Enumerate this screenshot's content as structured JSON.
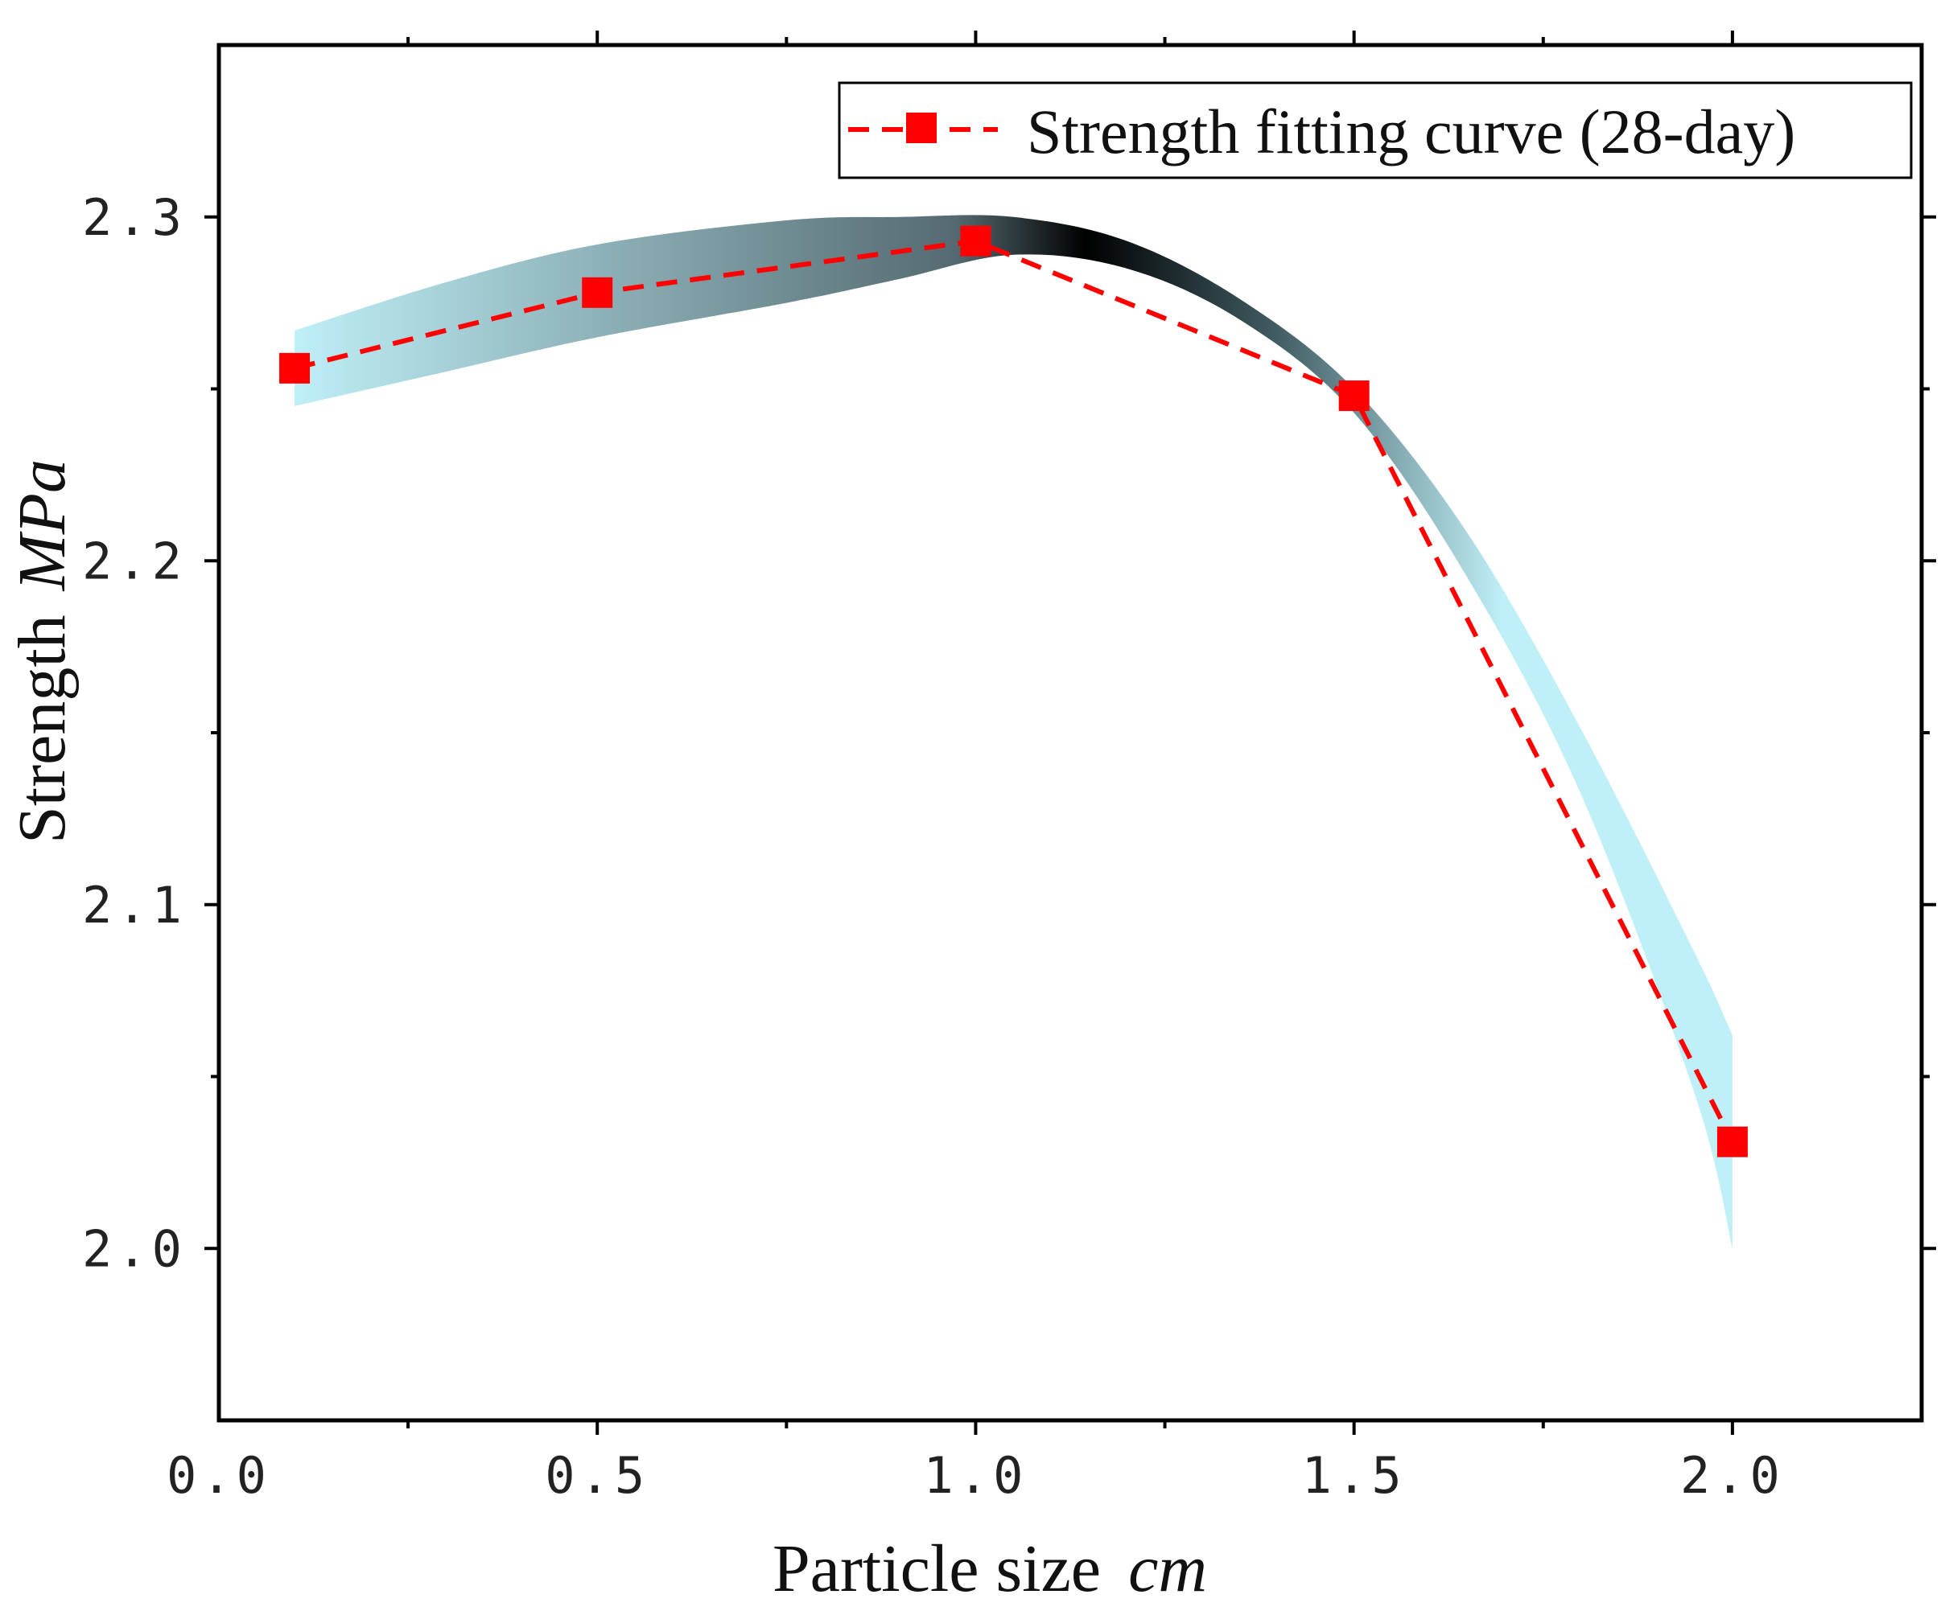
{
  "chart_data": {
    "type": "line",
    "title": "",
    "xlabel": "Particle size",
    "xlabel_unit": "cm",
    "ylabel": "Strength",
    "ylabel_unit": "MPa",
    "xlim": [
      0.0,
      2.25
    ],
    "ylim": [
      1.95,
      2.35
    ],
    "xticks": [
      0.0,
      0.5,
      1.0,
      1.5,
      2.0
    ],
    "xtick_labels": [
      "0.0",
      "0.5",
      "1.0",
      "1.5",
      "2.0"
    ],
    "yticks": [
      2.0,
      2.1,
      2.2,
      2.3
    ],
    "ytick_labels": [
      "2.0",
      "2.1",
      "2.2",
      "2.3"
    ],
    "grid": false,
    "legend_position": "top-right",
    "series": [
      {
        "name": "Strength fitting curve (28-day)",
        "color": "#ff0000",
        "line_style": "dashed",
        "marker": "square",
        "x": [
          0.1,
          0.5,
          1.0,
          1.5,
          2.0
        ],
        "y": [
          2.256,
          2.278,
          2.293,
          2.248,
          2.031
        ]
      }
    ],
    "band": {
      "x": [
        0.1,
        0.3,
        0.5,
        0.75,
        0.9,
        1.05,
        1.2,
        1.35,
        1.5,
        1.65,
        1.8,
        1.95,
        2.0
      ],
      "upper": [
        2.267,
        2.281,
        2.292,
        2.299,
        2.3,
        2.3,
        2.293,
        2.276,
        2.25,
        2.208,
        2.151,
        2.086,
        2.062
      ],
      "lower": [
        2.245,
        2.255,
        2.265,
        2.275,
        2.282,
        2.289,
        2.285,
        2.27,
        2.243,
        2.195,
        2.132,
        2.045,
        2.0
      ],
      "color_edge": "#bfeff7",
      "color_center": "#000000"
    }
  }
}
